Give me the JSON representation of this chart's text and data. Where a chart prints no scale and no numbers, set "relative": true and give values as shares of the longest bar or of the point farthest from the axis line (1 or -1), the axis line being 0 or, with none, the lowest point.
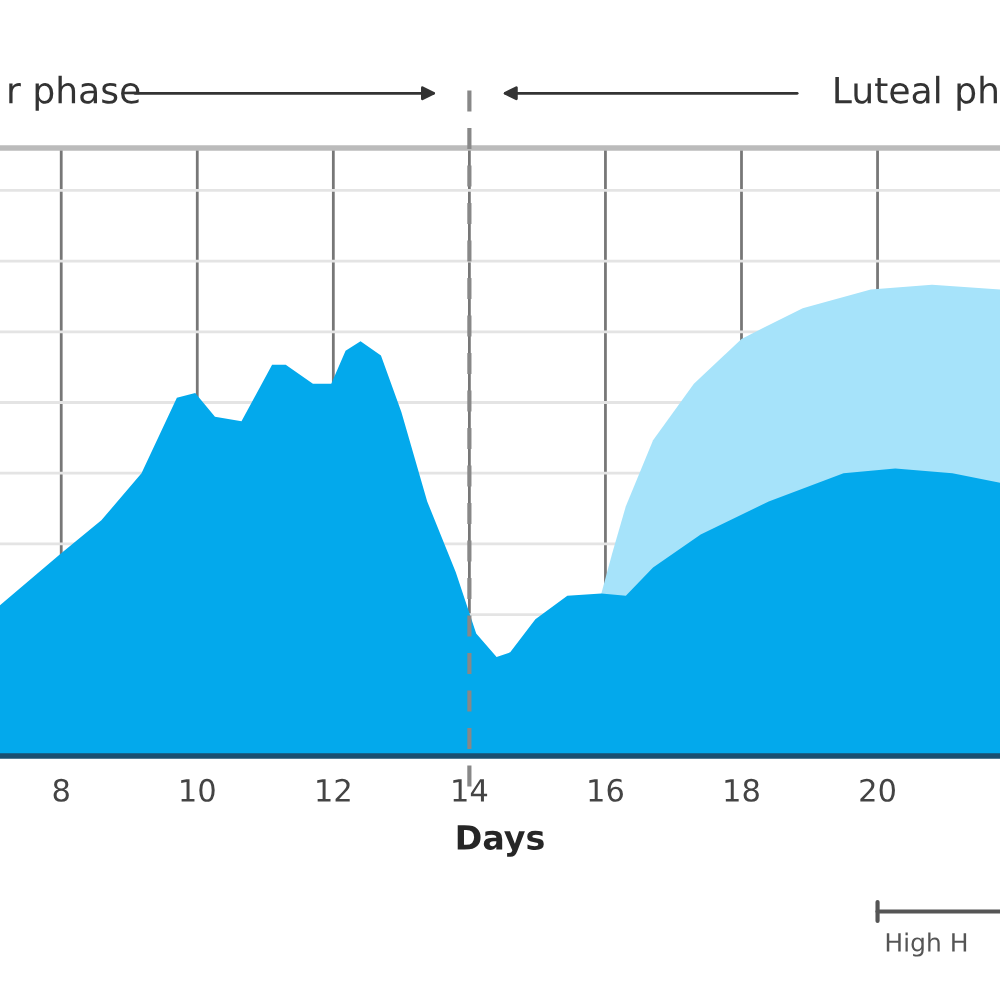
{
  "chart_data": {
    "type": "area",
    "relative": true,
    "xlabel": "Days",
    "xlim": [
      7.1,
      21.8
    ],
    "xticks": [
      8,
      10,
      12,
      14,
      16,
      18,
      20
    ],
    "series": [
      {
        "color": "#a6e3fa",
        "x": [
          15.94,
          16.1,
          16.3,
          16.7,
          17.3,
          18.0,
          18.9,
          19.9,
          20.8,
          21.8
        ],
        "values": [
          0.345,
          0.43,
          0.53,
          0.67,
          0.79,
          0.885,
          0.95,
          0.99,
          1.0,
          0.99
        ]
      },
      {
        "color": "#03a9ec",
        "x": [
          7.1,
          8,
          8.59,
          9.18,
          9.7,
          9.97,
          10.26,
          10.65,
          11.1,
          11.3,
          11.7,
          11.97,
          12.18,
          12.4,
          12.7,
          13.0,
          13.38,
          13.8,
          14.1,
          14.4,
          14.6,
          14.97,
          15.44,
          15.94,
          16.3,
          16.7,
          17.4,
          18.4,
          19.5,
          20.26,
          21.1,
          21.8
        ],
        "values": [
          0.32,
          0.43,
          0.5,
          0.6,
          0.76,
          0.77,
          0.72,
          0.71,
          0.83,
          0.83,
          0.79,
          0.79,
          0.86,
          0.88,
          0.85,
          0.73,
          0.54,
          0.39,
          0.26,
          0.21,
          0.22,
          0.29,
          0.34,
          0.345,
          0.34,
          0.4,
          0.47,
          0.54,
          0.6,
          0.61,
          0.6,
          0.58
        ]
      }
    ],
    "ref_lines": [
      {
        "axis": "x",
        "value": 14,
        "color": "#888888",
        "line_style": "dashed"
      }
    ],
    "grid": true,
    "annotations": [
      "r phase",
      "Luteal ph",
      "High H"
    ]
  }
}
